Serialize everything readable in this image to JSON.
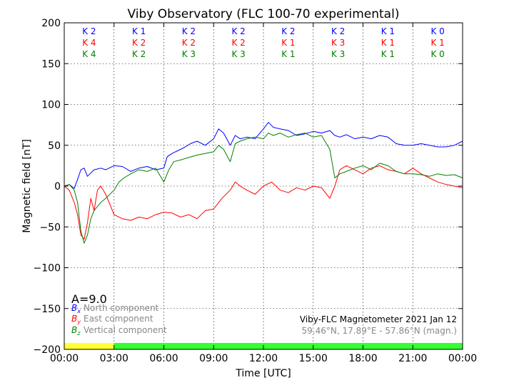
{
  "chart_data": {
    "type": "line",
    "title": "Viby Observatory (FLC 100-70 experimental)",
    "xlabel": "Time [UTC]",
    "ylabel": "Magnetic field [nT]",
    "xlim": [
      0,
      24
    ],
    "ylim": [
      -200,
      200
    ],
    "yticks": [
      -200,
      -150,
      -100,
      -50,
      0,
      50,
      100,
      150,
      200
    ],
    "ytick_labels": [
      "−200",
      "−150",
      "−100",
      "−50",
      "0",
      "50",
      "100",
      "150",
      "200"
    ],
    "xticks": [
      0,
      3,
      6,
      9,
      12,
      15,
      18,
      21,
      24
    ],
    "xtick_labels": [
      "00:00",
      "03:00",
      "06:00",
      "09:00",
      "12:00",
      "15:00",
      "18:00",
      "21:00",
      "00:00"
    ],
    "grid": true,
    "k_index": {
      "interval_hours": 3,
      "rows": [
        {
          "color": "#0000ff",
          "labels": [
            "K 2",
            "K 1",
            "K 2",
            "K 2",
            "K 2",
            "K 2",
            "K 1",
            "K 0"
          ]
        },
        {
          "color": "#ff0000",
          "labels": [
            "K 4",
            "K 2",
            "K 2",
            "K 2",
            "K 1",
            "K 3",
            "K 1",
            "K 1"
          ]
        },
        {
          "color": "#008000",
          "labels": [
            "K 4",
            "K 2",
            "K 3",
            "K 3",
            "K 1",
            "K 3",
            "K 1",
            "K 0"
          ]
        }
      ]
    },
    "activity_bar": [
      {
        "from": 0,
        "to": 3,
        "color": "#ffff33"
      },
      {
        "from": 3,
        "to": 24,
        "color": "#33ff33"
      }
    ],
    "a_index": "A=9.0",
    "legend": [
      {
        "symbol": "B",
        "subscript": "x",
        "label": "North component",
        "color": "#0000ff"
      },
      {
        "symbol": "B",
        "subscript": "y",
        "label": "East component",
        "color": "#ff0000"
      },
      {
        "symbol": "B",
        "subscript": "z",
        "label": "Vertical component",
        "color": "#008000"
      }
    ],
    "info_line1": "Viby-FLC Magnetometer 2021 Jan 12",
    "info_line2": "59.46°N, 17.89°E - 57.86°N (magn.)",
    "series": [
      {
        "name": "North component",
        "color": "#0000ff",
        "x": [
          0,
          0.3,
          0.6,
          0.8,
          1.0,
          1.2,
          1.4,
          1.6,
          1.8,
          2.0,
          2.2,
          2.5,
          3.0,
          3.5,
          4.0,
          4.5,
          5.0,
          5.5,
          6.0,
          6.2,
          6.5,
          7.0,
          7.3,
          7.6,
          8.0,
          8.5,
          9.0,
          9.3,
          9.6,
          10.0,
          10.3,
          10.6,
          11.0,
          11.5,
          12.0,
          12.3,
          12.6,
          13.0,
          13.5,
          14.0,
          14.5,
          15.0,
          15.5,
          16.0,
          16.3,
          16.6,
          17.0,
          17.5,
          18.0,
          18.5,
          19.0,
          19.5,
          20.0,
          20.5,
          21.0,
          21.5,
          22.0,
          22.5,
          23.0,
          23.5,
          24.0
        ],
        "values": [
          0,
          2,
          -3,
          8,
          20,
          22,
          12,
          16,
          20,
          21,
          22,
          20,
          25,
          24,
          18,
          22,
          24,
          20,
          22,
          36,
          40,
          45,
          48,
          52,
          55,
          50,
          58,
          70,
          65,
          50,
          62,
          58,
          60,
          58,
          70,
          78,
          72,
          70,
          68,
          62,
          64,
          67,
          65,
          68,
          62,
          60,
          63,
          58,
          60,
          58,
          62,
          60,
          52,
          50,
          50,
          52,
          50,
          48,
          48,
          50,
          55
        ]
      },
      {
        "name": "East component",
        "color": "#ff0000",
        "x": [
          0,
          0.3,
          0.6,
          0.8,
          1.0,
          1.2,
          1.4,
          1.6,
          1.8,
          2.0,
          2.2,
          2.5,
          3.0,
          3.5,
          4.0,
          4.5,
          5.0,
          5.5,
          6.0,
          6.5,
          7.0,
          7.5,
          8.0,
          8.5,
          9.0,
          9.5,
          10.0,
          10.3,
          10.6,
          11.0,
          11.5,
          12.0,
          12.5,
          13.0,
          13.5,
          14.0,
          14.5,
          15.0,
          15.5,
          16.0,
          16.3,
          16.6,
          17.0,
          17.5,
          18.0,
          18.5,
          19.0,
          19.5,
          20.0,
          20.5,
          21.0,
          21.5,
          22.0,
          22.5,
          23.0,
          23.5,
          24.0
        ],
        "values": [
          0,
          -5,
          -20,
          -35,
          -60,
          -65,
          -45,
          -15,
          -30,
          -5,
          0,
          -10,
          -35,
          -40,
          -42,
          -38,
          -40,
          -35,
          -32,
          -33,
          -38,
          -35,
          -40,
          -30,
          -28,
          -15,
          -5,
          5,
          0,
          -5,
          -10,
          0,
          5,
          -5,
          -8,
          -2,
          -5,
          0,
          -2,
          -15,
          0,
          20,
          25,
          20,
          15,
          22,
          25,
          20,
          18,
          15,
          22,
          15,
          10,
          5,
          2,
          0,
          -2
        ]
      },
      {
        "name": "Vertical component",
        "color": "#008000",
        "x": [
          0,
          0.3,
          0.6,
          0.8,
          1.0,
          1.2,
          1.4,
          1.6,
          1.8,
          2.0,
          2.2,
          2.5,
          3.0,
          3.3,
          3.6,
          4.0,
          4.5,
          5.0,
          5.5,
          6.0,
          6.3,
          6.6,
          7.0,
          7.5,
          8.0,
          8.5,
          9.0,
          9.3,
          9.6,
          10.0,
          10.3,
          10.6,
          11.0,
          11.5,
          12.0,
          12.3,
          12.6,
          13.0,
          13.5,
          14.0,
          14.5,
          15.0,
          15.5,
          16.0,
          16.3,
          16.6,
          17.0,
          17.5,
          18.0,
          18.5,
          19.0,
          19.5,
          20.0,
          20.5,
          21.0,
          21.5,
          22.0,
          22.5,
          23.0,
          23.5,
          24.0
        ],
        "values": [
          0,
          2,
          -5,
          -20,
          -55,
          -70,
          -60,
          -40,
          -30,
          -25,
          -20,
          -15,
          -5,
          5,
          10,
          15,
          20,
          18,
          22,
          5,
          20,
          30,
          32,
          35,
          38,
          40,
          42,
          50,
          45,
          30,
          52,
          55,
          58,
          60,
          58,
          65,
          62,
          65,
          60,
          63,
          65,
          60,
          62,
          45,
          10,
          15,
          18,
          22,
          25,
          20,
          28,
          25,
          18,
          15,
          15,
          14,
          12,
          15,
          13,
          14,
          10
        ]
      }
    ]
  }
}
